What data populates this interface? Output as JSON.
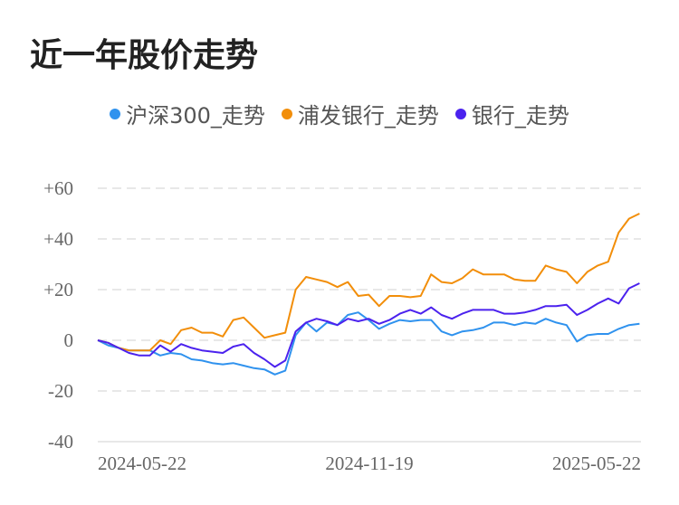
{
  "title": "近一年股价走势",
  "colors": {
    "hs300": "#2f92ee",
    "spdb": "#f28e0a",
    "bank": "#4b22ee",
    "grid": "#e8e8e8"
  },
  "chart_data": {
    "type": "line",
    "title": "近一年股价走势",
    "legend_position": "top",
    "grid": true,
    "ylim": [
      -40,
      60
    ],
    "yticks": [
      -40,
      -20,
      0,
      20,
      40,
      60
    ],
    "ytick_labels": [
      "-40",
      "-20",
      "0",
      "+20",
      "+40",
      "+60"
    ],
    "xtick_labels": [
      "2024-05-22",
      "2024-11-19",
      "2025-05-22"
    ],
    "x": [
      "2024-05-22",
      "2024-05-29",
      "2024-06-05",
      "2024-06-12",
      "2024-06-19",
      "2024-06-26",
      "2024-07-03",
      "2024-07-10",
      "2024-07-17",
      "2024-07-24",
      "2024-07-31",
      "2024-08-07",
      "2024-08-14",
      "2024-08-21",
      "2024-08-28",
      "2024-09-04",
      "2024-09-11",
      "2024-09-18",
      "2024-09-25",
      "2024-10-02",
      "2024-10-09",
      "2024-10-16",
      "2024-10-23",
      "2024-10-30",
      "2024-11-06",
      "2024-11-13",
      "2024-11-20",
      "2024-11-27",
      "2024-12-04",
      "2024-12-11",
      "2024-12-18",
      "2024-12-25",
      "2025-01-01",
      "2025-01-08",
      "2025-01-15",
      "2025-01-22",
      "2025-01-29",
      "2025-02-05",
      "2025-02-12",
      "2025-02-19",
      "2025-02-26",
      "2025-03-05",
      "2025-03-12",
      "2025-03-19",
      "2025-03-26",
      "2025-04-02",
      "2025-04-09",
      "2025-04-16",
      "2025-04-23",
      "2025-04-30",
      "2025-05-07",
      "2025-05-14",
      "2025-05-21"
    ],
    "series": [
      {
        "name": "沪深300_走势",
        "color_key": "hs300",
        "values": [
          0,
          -2,
          -3,
          -4,
          -4,
          -4,
          -6,
          -5,
          -5.5,
          -7.5,
          -8,
          -9,
          -9.5,
          -9,
          -10,
          -11,
          -11.5,
          -13.5,
          -12,
          2,
          7,
          3.5,
          7,
          6,
          10,
          11,
          8,
          4.5,
          6.5,
          8,
          7.5,
          8,
          8,
          3.5,
          2,
          3.5,
          4,
          5,
          7,
          7,
          6,
          7,
          6.5,
          8.5,
          7,
          6,
          -0.5,
          2,
          2.5,
          2.5,
          4.5,
          6,
          6.5
        ]
      },
      {
        "name": "浦发银行_走势",
        "color_key": "spdb",
        "values": [
          0,
          -1,
          -3,
          -4,
          -4,
          -4,
          0,
          -1.5,
          4,
          5,
          3,
          3,
          1.5,
          8,
          9,
          5,
          1,
          2,
          3,
          20,
          25,
          24,
          23,
          21,
          23,
          17.5,
          18,
          13.5,
          17.5,
          17.5,
          17,
          17.5,
          26,
          23,
          22.5,
          24.5,
          28,
          26,
          26,
          26,
          24,
          23.5,
          23.5,
          29.5,
          28,
          27,
          22.5,
          27,
          29.5,
          31,
          42.5,
          48,
          50
        ]
      },
      {
        "name": "银行_走势",
        "color_key": "bank",
        "values": [
          0,
          -1,
          -3,
          -5,
          -6,
          -6,
          -2,
          -4.5,
          -1.5,
          -3,
          -4,
          -4.5,
          -5,
          -2.5,
          -1.5,
          -5,
          -7.5,
          -10.5,
          -8,
          3.5,
          7,
          8.5,
          7.5,
          6,
          8.5,
          7.5,
          8.5,
          6.5,
          8,
          10.5,
          12,
          10.5,
          13,
          10,
          8.5,
          10.5,
          12,
          12,
          12,
          10.5,
          10.5,
          11,
          12,
          13.5,
          13.5,
          14,
          10,
          12,
          14.5,
          16.5,
          14.5,
          20.5,
          22.5
        ]
      }
    ]
  }
}
